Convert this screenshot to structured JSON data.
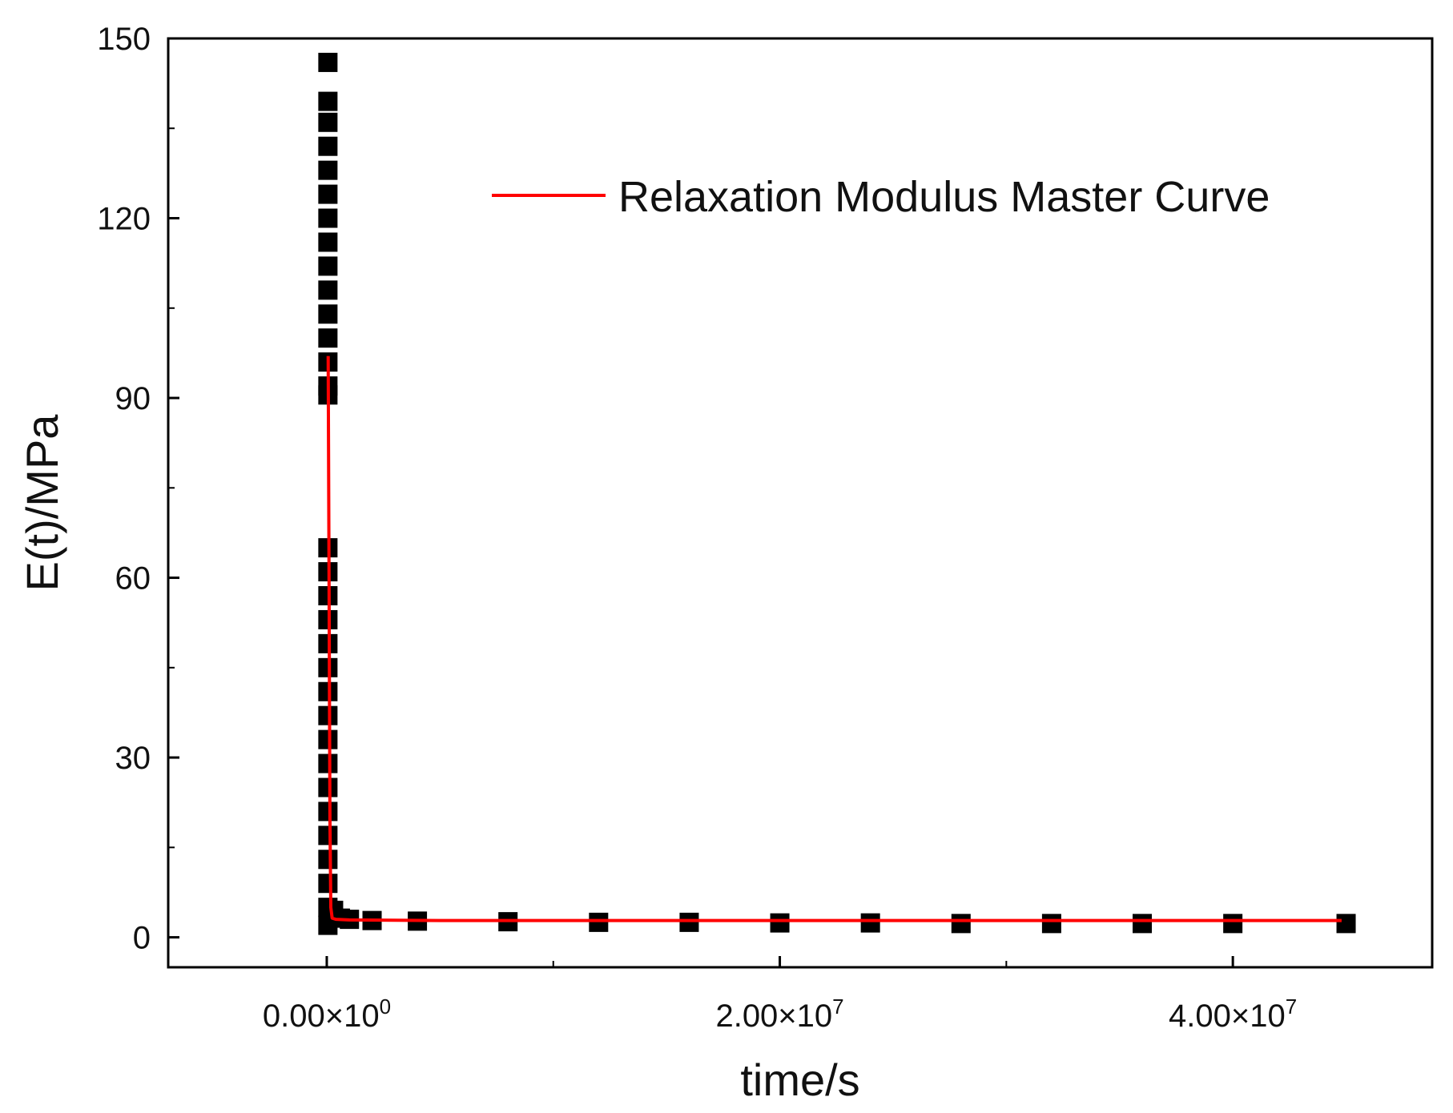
{
  "chart_data": {
    "type": "line",
    "xlabel": "time/s",
    "ylabel": "E(t)/MPa",
    "xlim": [
      -7000000,
      48800000
    ],
    "ylim": [
      -5,
      150
    ],
    "x_ticks": [
      {
        "value": 0,
        "mantissa": "0.00×10",
        "exp": "0"
      },
      {
        "value": 20000000,
        "mantissa": "2.00×10",
        "exp": "7"
      },
      {
        "value": 40000000,
        "mantissa": "4.00×10",
        "exp": "7"
      }
    ],
    "x_minor_ticks": [
      10000000,
      30000000
    ],
    "y_ticks": [
      0,
      30,
      60,
      90,
      120,
      150
    ],
    "y_minor_ticks": [
      15,
      45,
      75,
      105,
      135
    ],
    "grid": false,
    "legend": {
      "position": "top-right",
      "entries": [
        "Relaxation Modulus Master Curve"
      ]
    },
    "series": [
      {
        "name": "",
        "kind": "scatter",
        "color": "#000000",
        "points": [
          [
            50000,
            146
          ],
          [
            50000,
            139.5
          ],
          [
            50000,
            136
          ],
          [
            50000,
            132
          ],
          [
            50000,
            128
          ],
          [
            50000,
            124
          ],
          [
            50000,
            120
          ],
          [
            50000,
            116
          ],
          [
            50000,
            112
          ],
          [
            50000,
            108
          ],
          [
            50000,
            104
          ],
          [
            50000,
            100
          ],
          [
            50000,
            96
          ],
          [
            50000,
            92
          ],
          [
            50000,
            90.5
          ],
          [
            50000,
            65
          ],
          [
            50000,
            61
          ],
          [
            50000,
            57
          ],
          [
            50000,
            53
          ],
          [
            50000,
            49
          ],
          [
            50000,
            45
          ],
          [
            50000,
            41
          ],
          [
            50000,
            37
          ],
          [
            50000,
            33
          ],
          [
            50000,
            29
          ],
          [
            50000,
            25
          ],
          [
            50000,
            21
          ],
          [
            50000,
            17
          ],
          [
            50000,
            13
          ],
          [
            50000,
            9
          ],
          [
            50000,
            5
          ],
          [
            50000,
            2
          ],
          [
            300000,
            4.5
          ],
          [
            600000,
            3.2
          ],
          [
            1000000,
            3.0
          ],
          [
            2000000,
            2.8
          ],
          [
            4000000,
            2.7
          ],
          [
            8000000,
            2.6
          ],
          [
            12000000,
            2.5
          ],
          [
            16000000,
            2.5
          ],
          [
            20000000,
            2.4
          ],
          [
            24000000,
            2.4
          ],
          [
            28000000,
            2.3
          ],
          [
            32000000,
            2.3
          ],
          [
            36000000,
            2.3
          ],
          [
            40000000,
            2.3
          ],
          [
            45000000,
            2.3
          ]
        ]
      },
      {
        "name": "Relaxation Modulus Master Curve",
        "kind": "line",
        "color": "#ff0000",
        "points": [
          [
            60000,
            97
          ],
          [
            100000,
            60
          ],
          [
            140000,
            20
          ],
          [
            180000,
            5
          ],
          [
            240000,
            3.2
          ],
          [
            400000,
            3.0
          ],
          [
            1000000,
            2.9
          ],
          [
            5000000,
            2.8
          ],
          [
            10000000,
            2.8
          ],
          [
            20000000,
            2.8
          ],
          [
            30000000,
            2.8
          ],
          [
            40000000,
            2.8
          ],
          [
            44800000,
            2.8
          ]
        ]
      }
    ]
  }
}
